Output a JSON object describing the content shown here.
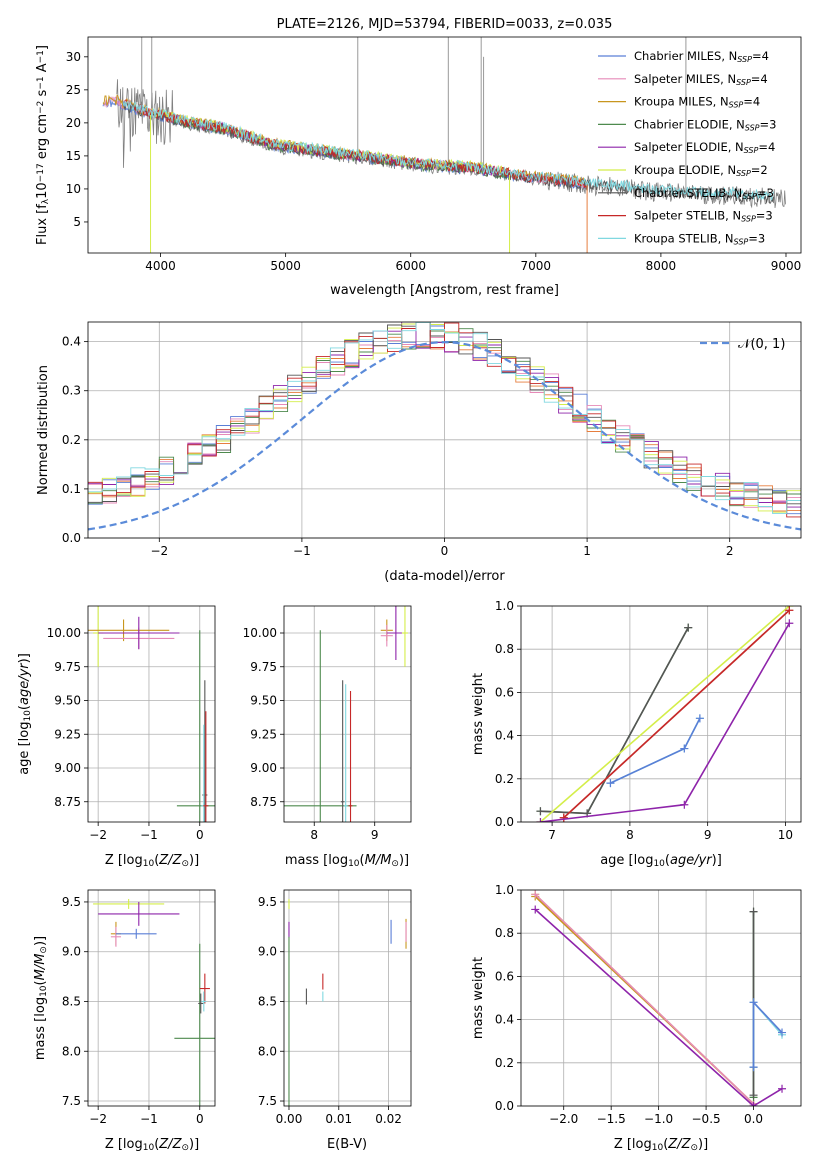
{
  "colors": {
    "Chabrier MILES": "#5a7fd6",
    "Salpeter MILES": "#e68ab8",
    "Kroupa MILES": "#c8961e",
    "Chabrier ELODIE": "#4e8a4e",
    "Salpeter ELODIE": "#8e24aa",
    "Kroupa ELODIE": "#d4ee4a",
    "Chabrier STELIB": "#555555",
    "Salpeter STELIB": "#c62828",
    "Kroupa STELIB": "#80d8e0",
    "observed": "#808080",
    "model_orange": "#e67e3e",
    "gauss": "#5b8bd9"
  },
  "chart_data": [
    {
      "id": "spectrum",
      "type": "line",
      "title": "PLATE=2126, MJD=53794, FIBERID=0033, z=0.035",
      "xlabel": "wavelength [Angstrom, rest frame]",
      "ylabel_parts": [
        "Flux [f",
        "λ",
        "10",
        "−17",
        " erg cm",
        "−2",
        " s",
        "−1",
        " A",
        "−1",
        "]"
      ],
      "xlim": [
        3420,
        9120
      ],
      "ylim": [
        0.3,
        33
      ],
      "xticks": [
        4000,
        5000,
        6000,
        7000,
        8000,
        9000
      ],
      "yticks": [
        5,
        10,
        15,
        20,
        25,
        30
      ],
      "legend_position": "top-right",
      "legend": [
        {
          "series": "Chabrier MILES",
          "label": "Chabrier MILES, N",
          "sub": "SSP",
          "suffix": "=4"
        },
        {
          "series": "Salpeter MILES",
          "label": "Salpeter MILES, N",
          "sub": "SSP",
          "suffix": "=4"
        },
        {
          "series": "Kroupa MILES",
          "label": "Kroupa MILES, N",
          "sub": "SSP",
          "suffix": "=4"
        },
        {
          "series": "Chabrier ELODIE",
          "label": "Chabrier ELODIE, N",
          "sub": "SSP",
          "suffix": "=3"
        },
        {
          "series": "Salpeter ELODIE",
          "label": "Salpeter ELODIE, N",
          "sub": "SSP",
          "suffix": "=4"
        },
        {
          "series": "Kroupa ELODIE",
          "label": "Kroupa ELODIE, N",
          "sub": "SSP",
          "suffix": "=2"
        },
        {
          "series": "Chabrier STELIB",
          "label": "Chabrier STELIB, N",
          "sub": "SSP",
          "suffix": "=3"
        },
        {
          "series": "Salpeter STELIB",
          "label": "Salpeter STELIB, N",
          "sub": "SSP",
          "suffix": "=3"
        },
        {
          "series": "Kroupa STELIB",
          "label": "Kroupa STELIB, N",
          "sub": "SSP",
          "suffix": "=3"
        }
      ],
      "continuum": [
        [
          3650,
          23
        ],
        [
          3800,
          22
        ],
        [
          3950,
          21
        ],
        [
          4000,
          21
        ],
        [
          4200,
          20
        ],
        [
          4500,
          19
        ],
        [
          4900,
          16.5
        ],
        [
          5300,
          15.5
        ],
        [
          5700,
          14.5
        ],
        [
          6100,
          13.5
        ],
        [
          6500,
          13
        ],
        [
          7000,
          11.5
        ],
        [
          7500,
          10.5
        ],
        [
          8000,
          9.5
        ],
        [
          8500,
          9
        ],
        [
          9000,
          8.5
        ]
      ],
      "series_ranges": [
        {
          "series": "Chabrier MILES",
          "x": [
            3540,
            7410
          ]
        },
        {
          "series": "Salpeter MILES",
          "x": [
            3540,
            7410
          ]
        },
        {
          "series": "Kroupa MILES",
          "x": [
            3540,
            7410
          ]
        },
        {
          "series": "Chabrier ELODIE",
          "x": [
            4100,
            6790
          ]
        },
        {
          "series": "Salpeter ELODIE",
          "x": [
            4100,
            6790
          ]
        },
        {
          "series": "Kroupa ELODIE",
          "x": [
            3900,
            6790
          ]
        },
        {
          "series": "Chabrier STELIB",
          "x": [
            3700,
            8900
          ]
        },
        {
          "series": "Salpeter STELIB",
          "x": [
            3700,
            7410
          ]
        },
        {
          "series": "Kroupa STELIB",
          "x": [
            3700,
            8900
          ]
        }
      ]
    },
    {
      "id": "residuals",
      "type": "line",
      "xlabel": "(data-model)/error",
      "ylabel": "Normed distribution",
      "xlim": [
        -2.5,
        2.5
      ],
      "ylim": [
        0,
        0.44
      ],
      "xticks": [
        -2,
        -1,
        0,
        1,
        2
      ],
      "yticks": [
        0.0,
        0.1,
        0.2,
        0.3,
        0.4
      ],
      "grid": true,
      "legend_position": "top-right",
      "legend": [
        {
          "label": "𝒩(0, 1)"
        }
      ],
      "gaussian": {
        "mean": 0,
        "sigma": 1
      },
      "histogram_bin_width": 0.1
    },
    {
      "id": "age_vs_Z",
      "type": "scatter",
      "xlabel": "Z [log10(Z/Z⊙)]",
      "ylabel": "age [log10(age/yr)]",
      "xlim": [
        -2.2,
        0.3
      ],
      "ylim": [
        8.6,
        10.2
      ],
      "xticks": [
        -2,
        -1,
        0
      ],
      "yticks": [
        8.75,
        9.0,
        9.25,
        9.5,
        9.75,
        10.0
      ],
      "grid": true,
      "points": [
        {
          "series": "Kroupa ELODIE",
          "x": -2.0,
          "y": 10.0,
          "xerr": 0.1,
          "yerr": 0.25
        },
        {
          "series": "Kroupa MILES",
          "x": -1.5,
          "y": 10.02,
          "xerr": 0.9,
          "yerr": 0.08
        },
        {
          "series": "Salpeter MILES",
          "x": -1.2,
          "y": 9.96,
          "xerr": 0.7,
          "yerr": 0.08
        },
        {
          "series": "Salpeter ELODIE",
          "x": -1.2,
          "y": 10.0,
          "xerr": 0.8,
          "yerr": 0.12
        },
        {
          "series": "Chabrier ELODIE",
          "x": 0.0,
          "y": 8.72,
          "xerr": 0.45,
          "yerr": 1.3
        },
        {
          "series": "Chabrier STELIB",
          "x": 0.1,
          "y": 8.8,
          "xerr": 0.05,
          "yerr": 0.85
        },
        {
          "series": "Kroupa STELIB",
          "x": 0.08,
          "y": 8.72,
          "xerr": 0.05,
          "yerr": 0.6
        },
        {
          "series": "Salpeter STELIB",
          "x": 0.12,
          "y": 8.72,
          "xerr": 0.05,
          "yerr": 0.7
        }
      ]
    },
    {
      "id": "age_vs_mass",
      "type": "scatter",
      "xlabel": "mass [log10(M/M⊙)]",
      "xlim": [
        7.5,
        9.6
      ],
      "ylim": [
        8.6,
        10.2
      ],
      "xticks": [
        8,
        9
      ],
      "yticks": [
        8.75,
        9.0,
        9.25,
        9.5,
        9.75,
        10.0
      ],
      "grid": true,
      "points": [
        {
          "series": "Chabrier ELODIE",
          "x": 8.1,
          "y": 8.72,
          "xerr": 0.6,
          "yerr": 1.3
        },
        {
          "series": "Chabrier STELIB",
          "x": 8.47,
          "y": 8.75,
          "xerr": 0.03,
          "yerr": 0.9
        },
        {
          "series": "Kroupa STELIB",
          "x": 8.52,
          "y": 8.72,
          "xerr": 0.03,
          "yerr": 0.9
        },
        {
          "series": "Salpeter STELIB",
          "x": 8.6,
          "y": 8.72,
          "xerr": 0.03,
          "yerr": 0.85
        },
        {
          "series": "Kroupa MILES",
          "x": 9.2,
          "y": 10.02,
          "xerr": 0.1,
          "yerr": 0.08
        },
        {
          "series": "Salpeter MILES",
          "x": 9.2,
          "y": 9.98,
          "xerr": 0.1,
          "yerr": 0.08
        },
        {
          "series": "Salpeter ELODIE",
          "x": 9.35,
          "y": 10.0,
          "xerr": 0.15,
          "yerr": 0.2
        },
        {
          "series": "Kroupa ELODIE",
          "x": 9.5,
          "y": 10.0,
          "xerr": 0.05,
          "yerr": 0.25
        }
      ]
    },
    {
      "id": "weight_vs_age",
      "type": "line",
      "xlabel": "age [log10(age/yr)]",
      "ylabel": "mass weight",
      "xlim": [
        6.6,
        10.2
      ],
      "ylim": [
        0,
        1
      ],
      "xticks": [
        7,
        8,
        9,
        10
      ],
      "yticks": [
        0.0,
        0.2,
        0.4,
        0.6,
        0.8,
        1.0
      ],
      "grid": true,
      "series": [
        {
          "name": "Chabrier ELODIE",
          "x": [
            6.85,
            7.45,
            8.75
          ],
          "y": [
            0.05,
            0.04,
            0.9
          ]
        },
        {
          "name": "Chabrier STELIB",
          "x": [
            6.85,
            7.45,
            8.75
          ],
          "y": [
            0.05,
            0.04,
            0.9
          ]
        },
        {
          "name": "Kroupa STELIB",
          "x": [
            7.75,
            8.7,
            8.9
          ],
          "y": [
            0.18,
            0.34,
            0.48
          ]
        },
        {
          "name": "Chabrier MILES",
          "x": [
            7.75,
            8.7,
            8.9
          ],
          "y": [
            0.18,
            0.34,
            0.48
          ]
        },
        {
          "name": "Kroupa ELODIE",
          "x": [
            6.85,
            10.05
          ],
          "y": [
            0.0,
            1.0
          ]
        },
        {
          "name": "Kroupa MILES",
          "x": [
            7.15,
            10.05
          ],
          "y": [
            0.02,
            0.98
          ]
        },
        {
          "name": "Salpeter MILES",
          "x": [
            7.15,
            10.05
          ],
          "y": [
            0.02,
            0.98
          ]
        },
        {
          "name": "Salpeter STELIB",
          "x": [
            7.15,
            10.05
          ],
          "y": [
            0.02,
            0.98
          ]
        },
        {
          "name": "Salpeter ELODIE",
          "x": [
            6.85,
            8.7,
            10.05
          ],
          "y": [
            0.0,
            0.08,
            0.92
          ]
        }
      ]
    },
    {
      "id": "mass_vs_Z",
      "type": "scatter",
      "xlabel": "Z [log10(Z/Z⊙)]",
      "ylabel": "mass [log10(M/M⊙)]",
      "xlim": [
        -2.2,
        0.3
      ],
      "ylim": [
        7.45,
        9.62
      ],
      "xticks": [
        -2,
        -1,
        0
      ],
      "yticks": [
        7.5,
        8.0,
        8.5,
        9.0,
        9.5
      ],
      "grid": true,
      "points": [
        {
          "series": "Kroupa ELODIE",
          "x": -1.4,
          "y": 9.48,
          "xerr": 0.7,
          "yerr": 0.05
        },
        {
          "series": "Salpeter ELODIE",
          "x": -1.2,
          "y": 9.38,
          "xerr": 0.8,
          "yerr": 0.12
        },
        {
          "series": "Kroupa MILES",
          "x": -1.65,
          "y": 9.18,
          "xerr": 0.1,
          "yerr": 0.12
        },
        {
          "series": "Salpeter MILES",
          "x": -1.65,
          "y": 9.15,
          "xerr": 0.1,
          "yerr": 0.1
        },
        {
          "series": "Chabrier MILES",
          "x": -1.25,
          "y": 9.18,
          "xerr": 0.4,
          "yerr": 0.05
        },
        {
          "series": "Chabrier ELODIE",
          "x": 0.0,
          "y": 8.13,
          "xerr": 0.5,
          "yerr": 0.95
        },
        {
          "series": "Chabrier STELIB",
          "x": 0.02,
          "y": 8.48,
          "xerr": 0.05,
          "yerr": 0.1
        },
        {
          "series": "Salpeter STELIB",
          "x": 0.1,
          "y": 8.63,
          "xerr": 0.1,
          "yerr": 0.15
        },
        {
          "series": "Kroupa STELIB",
          "x": 0.08,
          "y": 8.5,
          "xerr": 0.05,
          "yerr": 0.1
        }
      ]
    },
    {
      "id": "mass_vs_EBV",
      "type": "scatter",
      "xlabel": "E(B-V)",
      "xlim": [
        -0.001,
        0.0245
      ],
      "ylim": [
        7.45,
        9.62
      ],
      "xticks": [
        0.0,
        0.01,
        0.02
      ],
      "yticks": [
        7.5,
        8.0,
        8.5,
        9.0,
        9.5
      ],
      "grid": true,
      "points": [
        {
          "series": "Kroupa ELODIE",
          "x": 0.0,
          "y": 9.48,
          "yerr": 0.05
        },
        {
          "series": "Salpeter ELODIE",
          "x": 0.0,
          "y": 9.22,
          "yerr": 0.08
        },
        {
          "series": "Chabrier ELODIE",
          "x": 0.0,
          "y": 8.3,
          "yerr": 0.85
        },
        {
          "series": "Chabrier STELIB",
          "x": 0.0035,
          "y": 8.55,
          "yerr": 0.08
        },
        {
          "series": "Salpeter STELIB",
          "x": 0.0068,
          "y": 8.7,
          "yerr": 0.08
        },
        {
          "series": "Kroupa STELIB",
          "x": 0.0068,
          "y": 8.55,
          "yerr": 0.05
        },
        {
          "series": "Chabrier MILES",
          "x": 0.0205,
          "y": 9.2,
          "yerr": 0.12
        },
        {
          "series": "Kroupa MILES",
          "x": 0.0235,
          "y": 9.18,
          "yerr": 0.15
        },
        {
          "series": "Salpeter MILES",
          "x": 0.0235,
          "y": 9.2,
          "yerr": 0.1
        }
      ]
    },
    {
      "id": "weight_vs_Z",
      "type": "line",
      "xlabel": "Z [log10(Z/Z⊙)]",
      "ylabel": "mass weight",
      "xlim": [
        -2.45,
        0.5
      ],
      "ylim": [
        0,
        1
      ],
      "xticks": [
        -2.0,
        -1.5,
        -1.0,
        -0.5,
        0.0
      ],
      "yticks": [
        0.0,
        0.2,
        0.4,
        0.6,
        0.8,
        1.0
      ],
      "grid": true,
      "series": [
        {
          "name": "Kroupa ELODIE",
          "x": [
            -2.3,
            0.0
          ],
          "y": [
            0.98,
            0.01
          ]
        },
        {
          "name": "Kroupa MILES",
          "x": [
            -2.3,
            0.0
          ],
          "y": [
            0.97,
            0.01
          ]
        },
        {
          "name": "Salpeter MILES",
          "x": [
            -2.3,
            0.0
          ],
          "y": [
            0.98,
            0.01
          ]
        },
        {
          "name": "Salpeter ELODIE",
          "x": [
            -2.3,
            0.0,
            0.3
          ],
          "y": [
            0.91,
            0.0,
            0.08
          ]
        },
        {
          "name": "Chabrier ELODIE",
          "x": [
            0.0,
            0.0,
            0.0
          ],
          "y": [
            0.04,
            0.9,
            0.18
          ]
        },
        {
          "name": "Chabrier STELIB",
          "x": [
            0.0,
            0.0
          ],
          "y": [
            0.05,
            0.9
          ]
        },
        {
          "name": "Kroupa STELIB",
          "x": [
            0.0,
            0.0,
            0.3
          ],
          "y": [
            0.18,
            0.48,
            0.33
          ]
        },
        {
          "name": "Chabrier MILES",
          "x": [
            0.0,
            0.0,
            0.3
          ],
          "y": [
            0.18,
            0.48,
            0.34
          ]
        }
      ]
    }
  ]
}
